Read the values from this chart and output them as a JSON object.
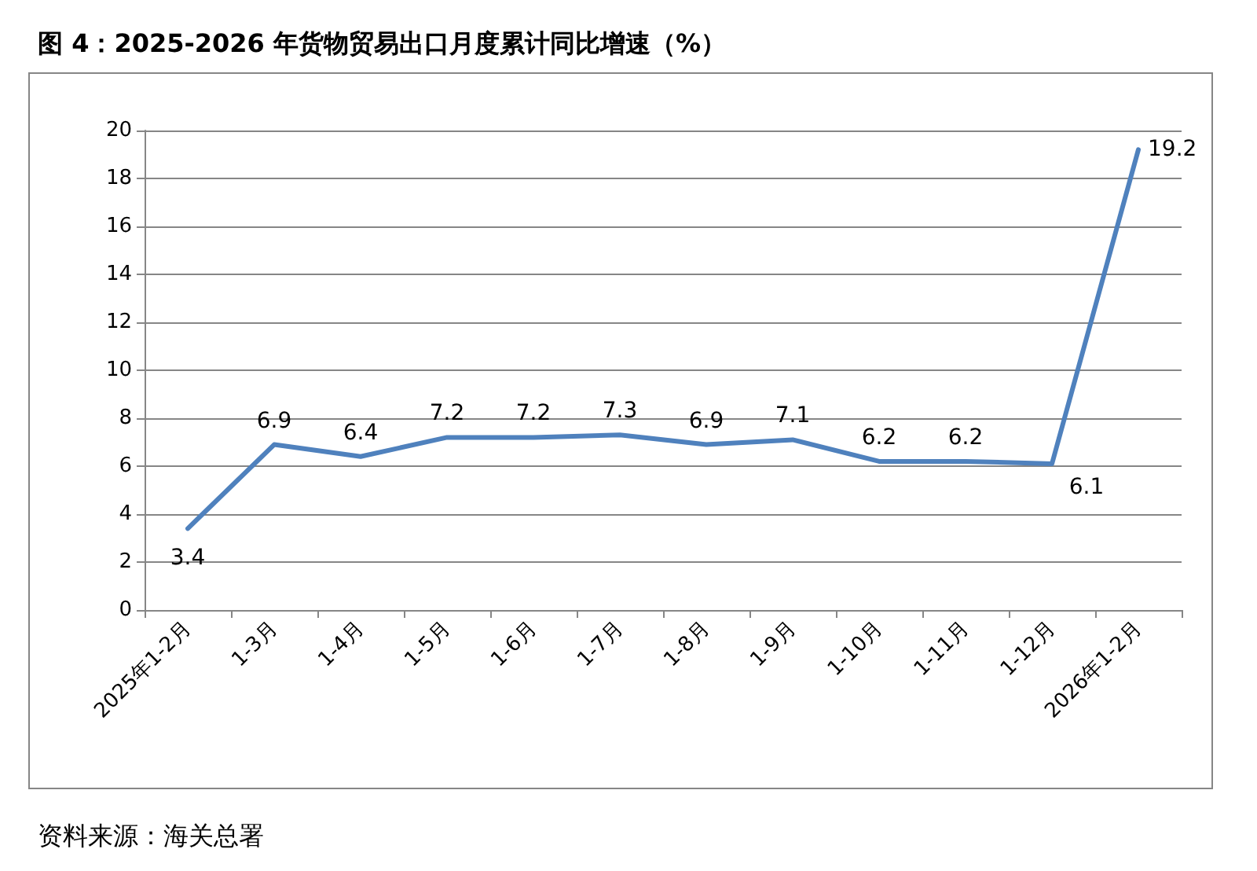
{
  "chart_data": {
    "type": "line",
    "title": "图 4：2025-2026 年货物贸易出口月度累计同比增速（%）",
    "categories": [
      "2025年1-2月",
      "1-3月",
      "1-4月",
      "1-5月",
      "1-6月",
      "1-7月",
      "1-8月",
      "1-9月",
      "1-10月",
      "1-11月",
      "1-12月",
      "2026年1-2月"
    ],
    "series": [
      {
        "color": "#4f81bd",
        "values": [
          3.4,
          6.9,
          6.4,
          7.2,
          7.2,
          7.3,
          6.9,
          7.1,
          6.2,
          6.2,
          6.1,
          19.2
        ]
      }
    ],
    "ylim": [
      0,
      20
    ],
    "yticks": [
      0,
      2,
      4,
      6,
      8,
      10,
      12,
      14,
      16,
      18,
      20
    ],
    "grid": "y",
    "data_labels": true,
    "marker": "none",
    "line_style": "solid",
    "annotations": [
      "资料来源：海关总署"
    ]
  }
}
